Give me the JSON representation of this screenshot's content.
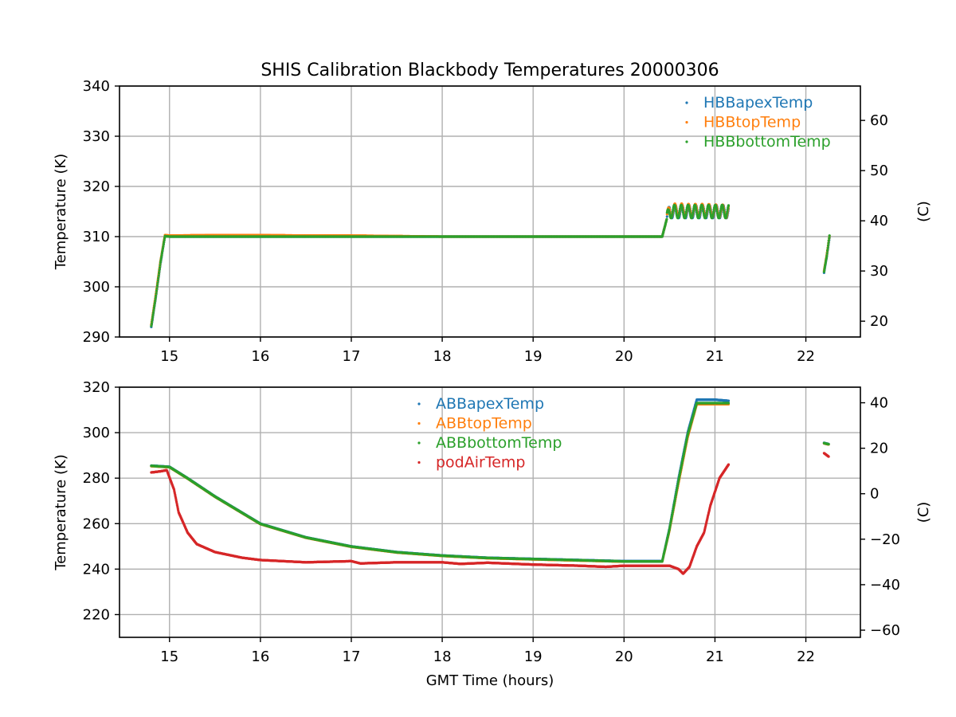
{
  "chart_data": {
    "type": "scatter",
    "title": "SHIS Calibration Blackbody Temperatures 20000306",
    "xlabel": "GMT Time (hours)",
    "colors": {
      "c0": "#1f77b4",
      "c1": "#ff7f0e",
      "c2": "#2ca02c",
      "c3": "#d62728"
    },
    "panels": [
      {
        "id": "top",
        "ylabel": "Temperature (K)",
        "ylabel_right": "(C)",
        "xlim": [
          14.45,
          22.6
        ],
        "ylim": [
          290,
          340
        ],
        "xticks": [
          15,
          16,
          17,
          18,
          19,
          20,
          21,
          22
        ],
        "yticks": [
          290,
          300,
          310,
          320,
          330,
          340
        ],
        "yticks_right": [
          20,
          30,
          40,
          50,
          60
        ],
        "grid": true,
        "legend": "top-right",
        "series": [
          {
            "name": "HBBapexTemp",
            "color": "#1f77b4",
            "points": [
              [
                14.8,
                292
              ],
              [
                14.85,
                298
              ],
              [
                14.9,
                304.5
              ],
              [
                14.95,
                310.2
              ],
              [
                15.0,
                310
              ],
              [
                15.5,
                310
              ],
              [
                16.0,
                310
              ],
              [
                16.5,
                310
              ],
              [
                17.0,
                310
              ],
              [
                17.5,
                310
              ],
              [
                18.0,
                310
              ],
              [
                18.5,
                310
              ],
              [
                19.0,
                310
              ],
              [
                19.5,
                310
              ],
              [
                20.0,
                310
              ],
              [
                20.42,
                310
              ],
              [
                20.47,
                313.5
              ],
              [
                20.5,
                315
              ],
              [
                20.6,
                315
              ],
              [
                20.7,
                315
              ],
              [
                20.8,
                315
              ],
              [
                20.9,
                315
              ],
              [
                21.0,
                315
              ],
              [
                21.15,
                315
              ],
              [
                22.2,
                302.8
              ],
              [
                22.23,
                306
              ],
              [
                22.26,
                309.8
              ]
            ]
          },
          {
            "name": "HBBtopTemp",
            "color": "#ff7f0e",
            "points": [
              [
                14.8,
                292.5
              ],
              [
                14.85,
                298.5
              ],
              [
                14.9,
                305
              ],
              [
                14.95,
                310.3
              ],
              [
                15.0,
                310.2
              ],
              [
                15.5,
                310.3
              ],
              [
                16.0,
                310.3
              ],
              [
                16.5,
                310.2
              ],
              [
                17.0,
                310.2
              ],
              [
                17.5,
                310.1
              ],
              [
                18.0,
                310
              ],
              [
                18.5,
                310
              ],
              [
                19.0,
                310
              ],
              [
                19.5,
                310
              ],
              [
                20.0,
                310
              ],
              [
                20.42,
                310
              ],
              [
                20.47,
                313.5
              ],
              [
                20.5,
                315.2
              ],
              [
                20.6,
                315.3
              ],
              [
                20.7,
                315.2
              ],
              [
                20.8,
                315.2
              ],
              [
                20.9,
                315.2
              ],
              [
                21.0,
                315.1
              ],
              [
                21.15,
                315
              ],
              [
                22.2,
                303.2
              ],
              [
                22.23,
                306.4
              ],
              [
                22.26,
                310.1
              ]
            ]
          },
          {
            "name": "HBBbottomTemp",
            "color": "#2ca02c",
            "points": [
              [
                14.8,
                292.2
              ],
              [
                14.85,
                298.2
              ],
              [
                14.9,
                304.8
              ],
              [
                14.95,
                310.1
              ],
              [
                15.0,
                310
              ],
              [
                15.5,
                310
              ],
              [
                16.0,
                310
              ],
              [
                16.5,
                310
              ],
              [
                17.0,
                310
              ],
              [
                17.5,
                310
              ],
              [
                18.0,
                310
              ],
              [
                18.5,
                310
              ],
              [
                19.0,
                310
              ],
              [
                19.5,
                310
              ],
              [
                20.0,
                310
              ],
              [
                20.42,
                310
              ],
              [
                20.47,
                313.5
              ],
              [
                20.5,
                315
              ],
              [
                20.6,
                315
              ],
              [
                20.7,
                315
              ],
              [
                20.8,
                315
              ],
              [
                20.9,
                315
              ],
              [
                21.0,
                315
              ],
              [
                21.15,
                315
              ],
              [
                22.2,
                303
              ],
              [
                22.23,
                306.2
              ],
              [
                22.26,
                310.2
              ]
            ]
          }
        ],
        "oscillation": {
          "x_range": [
            20.47,
            21.15
          ],
          "amplitude": 1.3
        }
      },
      {
        "id": "bottom",
        "ylabel": "Temperature (K)",
        "ylabel_right": "(C)",
        "xlim": [
          14.45,
          22.6
        ],
        "ylim": [
          210,
          320
        ],
        "xticks": [
          15,
          16,
          17,
          18,
          19,
          20,
          21,
          22
        ],
        "yticks": [
          220,
          240,
          260,
          280,
          300,
          320
        ],
        "yticks_right": [
          -60,
          -40,
          -20,
          0,
          20,
          40
        ],
        "grid": true,
        "legend": "top-center",
        "series": [
          {
            "name": "ABBapexTemp",
            "color": "#1f77b4",
            "points": [
              [
                14.8,
                285.5
              ],
              [
                15.0,
                285
              ],
              [
                15.2,
                280
              ],
              [
                15.5,
                272
              ],
              [
                16.0,
                260
              ],
              [
                16.5,
                254
              ],
              [
                17.0,
                250
              ],
              [
                17.5,
                247.5
              ],
              [
                18.0,
                246
              ],
              [
                18.5,
                245
              ],
              [
                19.0,
                244.5
              ],
              [
                19.5,
                244
              ],
              [
                20.0,
                243.5
              ],
              [
                20.42,
                243.5
              ],
              [
                20.5,
                258
              ],
              [
                20.6,
                280
              ],
              [
                20.7,
                300
              ],
              [
                20.8,
                314.5
              ],
              [
                21.0,
                314.5
              ],
              [
                21.15,
                314
              ],
              [
                22.2,
                295.5
              ],
              [
                22.25,
                295
              ]
            ]
          },
          {
            "name": "ABBtopTemp",
            "color": "#ff7f0e",
            "points": [
              [
                14.8,
                285.3
              ],
              [
                15.0,
                284.8
              ],
              [
                15.2,
                279.8
              ],
              [
                15.5,
                271.8
              ],
              [
                16.0,
                259.8
              ],
              [
                16.5,
                253.8
              ],
              [
                17.0,
                249.8
              ],
              [
                17.5,
                247.3
              ],
              [
                18.0,
                245.8
              ],
              [
                18.5,
                244.8
              ],
              [
                19.0,
                244.3
              ],
              [
                19.5,
                243.8
              ],
              [
                20.0,
                243.3
              ],
              [
                20.42,
                243.3
              ],
              [
                20.5,
                257
              ],
              [
                20.6,
                278
              ],
              [
                20.7,
                298
              ],
              [
                20.8,
                312.5
              ],
              [
                21.0,
                312.5
              ],
              [
                21.15,
                312.5
              ],
              [
                22.2,
                295.3
              ],
              [
                22.25,
                294.8
              ]
            ]
          },
          {
            "name": "ABBbottomTemp",
            "color": "#2ca02c",
            "points": [
              [
                14.8,
                285.4
              ],
              [
                15.0,
                284.9
              ],
              [
                15.2,
                279.9
              ],
              [
                15.5,
                271.9
              ],
              [
                16.0,
                259.9
              ],
              [
                16.5,
                253.9
              ],
              [
                17.0,
                249.9
              ],
              [
                17.5,
                247.4
              ],
              [
                18.0,
                245.9
              ],
              [
                18.5,
                244.9
              ],
              [
                19.0,
                244.4
              ],
              [
                19.5,
                243.9
              ],
              [
                20.0,
                243.4
              ],
              [
                20.42,
                243.4
              ],
              [
                20.5,
                257.5
              ],
              [
                20.6,
                279
              ],
              [
                20.7,
                299
              ],
              [
                20.8,
                313
              ],
              [
                21.0,
                313
              ],
              [
                21.15,
                313
              ],
              [
                22.2,
                295.4
              ],
              [
                22.25,
                294.9
              ]
            ]
          },
          {
            "name": "podAirTemp",
            "color": "#d62728",
            "points": [
              [
                14.8,
                282.5
              ],
              [
                14.9,
                283
              ],
              [
                14.97,
                283.5
              ],
              [
                15.05,
                275
              ],
              [
                15.1,
                265
              ],
              [
                15.2,
                256
              ],
              [
                15.3,
                251
              ],
              [
                15.5,
                247.5
              ],
              [
                15.8,
                245
              ],
              [
                16.0,
                244
              ],
              [
                16.5,
                243
              ],
              [
                17.0,
                243.5
              ],
              [
                17.1,
                242.5
              ],
              [
                17.5,
                243
              ],
              [
                18.0,
                243
              ],
              [
                18.2,
                242.3
              ],
              [
                18.5,
                242.8
              ],
              [
                19.0,
                242
              ],
              [
                19.5,
                241.5
              ],
              [
                19.8,
                241
              ],
              [
                20.0,
                241.5
              ],
              [
                20.5,
                241.5
              ],
              [
                20.6,
                240
              ],
              [
                20.65,
                238
              ],
              [
                20.72,
                241
              ],
              [
                20.8,
                250
              ],
              [
                20.88,
                256
              ],
              [
                20.95,
                268
              ],
              [
                21.05,
                280
              ],
              [
                21.15,
                286
              ],
              [
                22.2,
                291
              ],
              [
                22.25,
                289.5
              ]
            ]
          }
        ]
      }
    ]
  }
}
